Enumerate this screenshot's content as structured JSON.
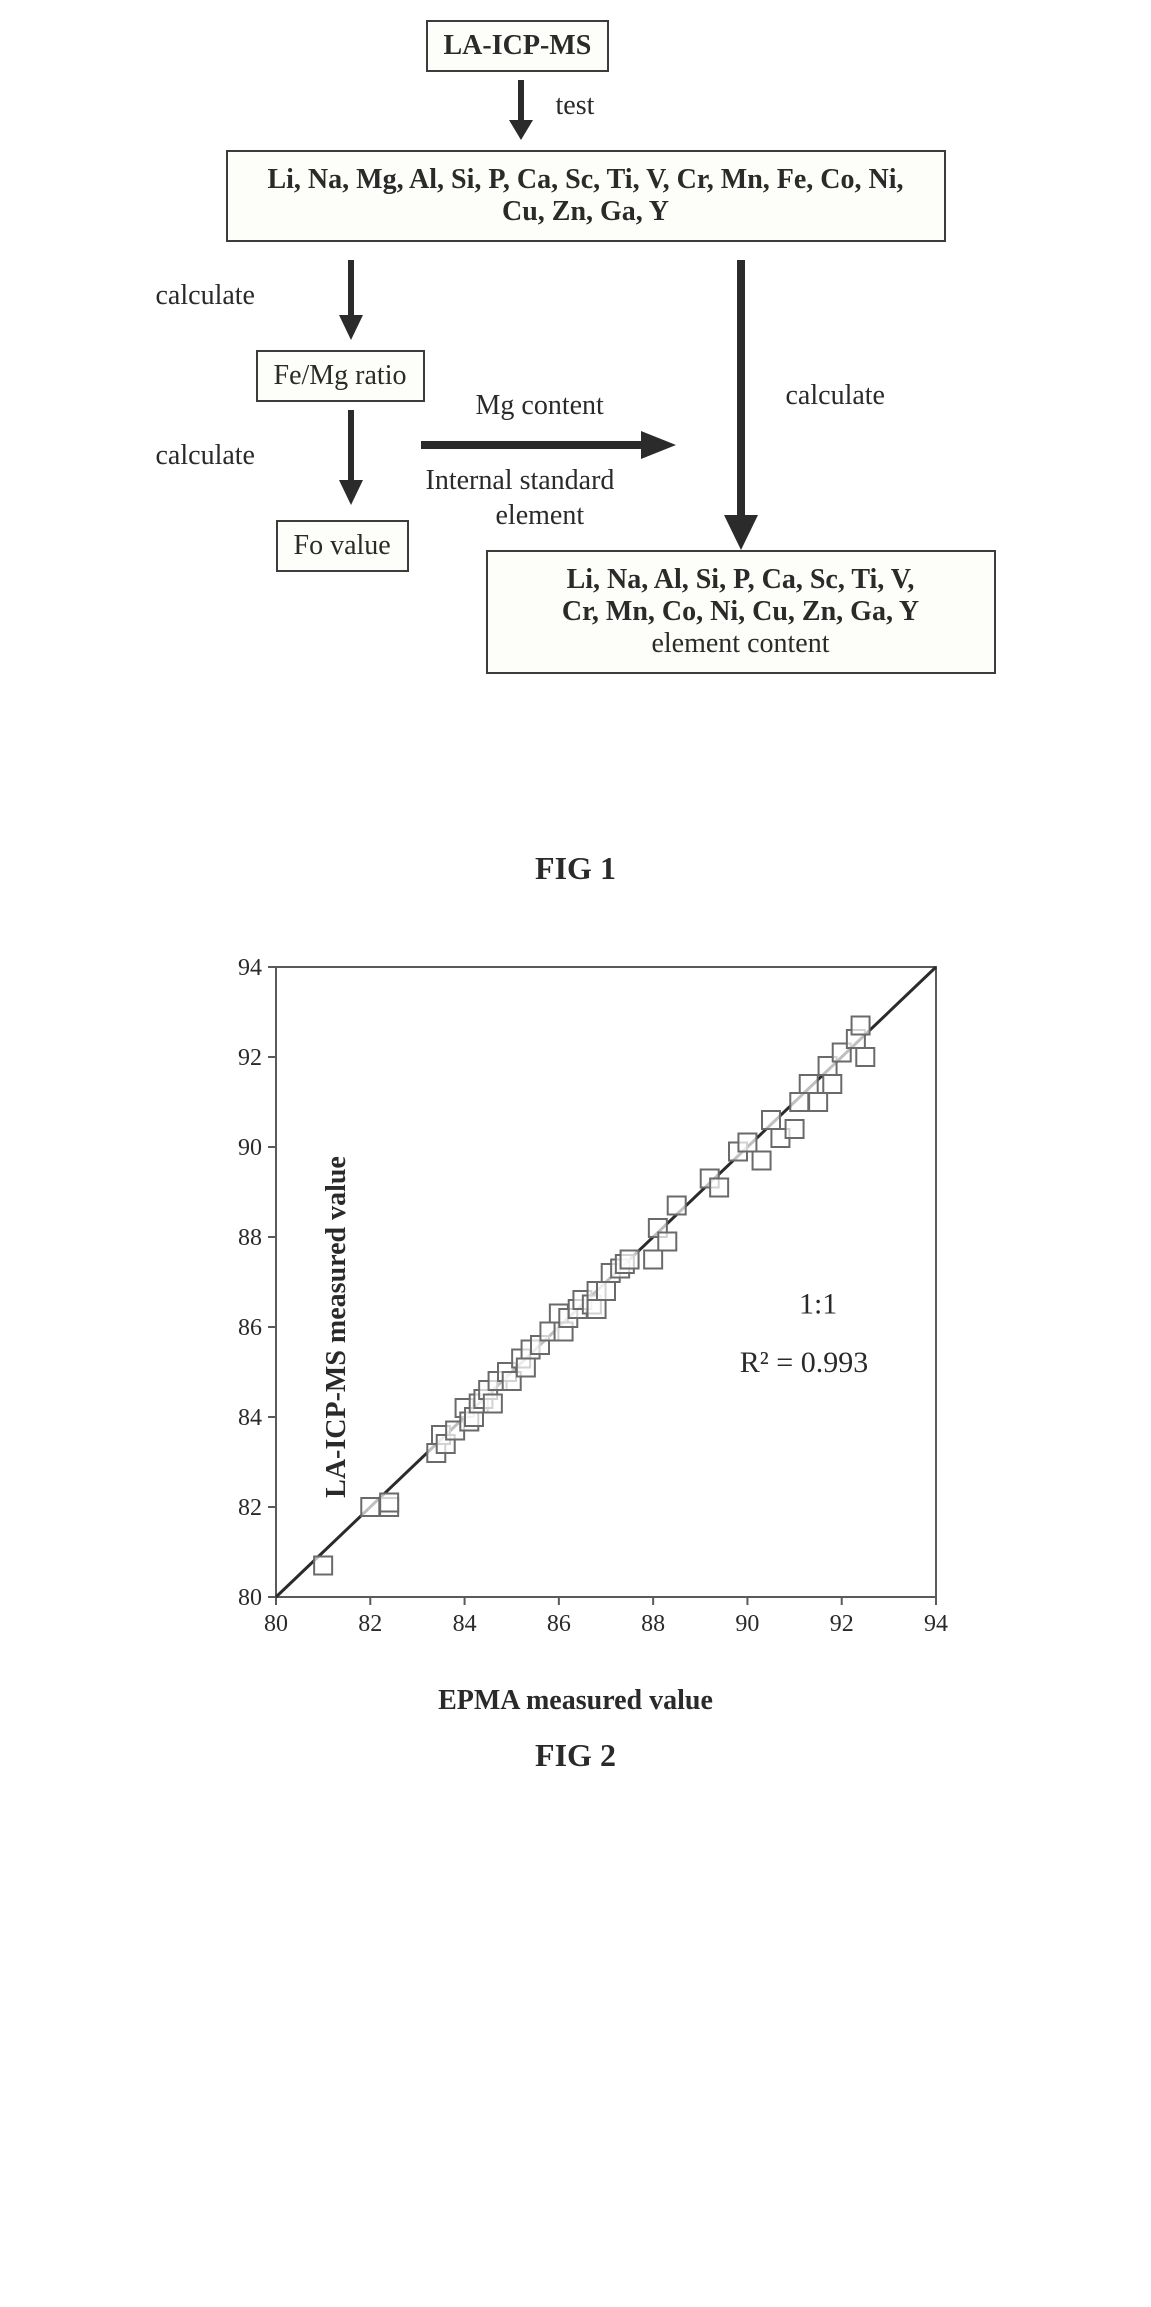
{
  "fig1": {
    "title_box": "LA-ICP-MS",
    "elements_box": "Li, Na, Mg, Al, Si, P, Ca, Sc, Ti, V, Cr, Mn, Fe, Co, Ni, Cu, Zn, Ga, Y",
    "ratio_box": "Fe/Mg ratio",
    "fo_box": "Fo value",
    "result_box_line1": "Li, Na, Al, Si, P, Ca, Sc, Ti, V,",
    "result_box_line2": "Cr, Mn, Co, Ni, Cu, Zn, Ga, Y",
    "result_box_line3": "element content",
    "label_test": "test",
    "label_calc": "calculate",
    "label_mg": "Mg content",
    "label_internal1": "Internal standard",
    "label_internal2": "element",
    "caption": "FIG 1",
    "arrow_color": "#2b2b2b",
    "box_border": "#3c3c3c"
  },
  "fig2": {
    "caption": "FIG 2",
    "xlabel": "EPMA measured value",
    "ylabel": "LA-ICP-MS measured value",
    "xlim": [
      80,
      94
    ],
    "ylim": [
      80,
      94
    ],
    "tick_step": 2,
    "ticks": [
      80,
      82,
      84,
      86,
      88,
      90,
      92,
      94
    ],
    "tick_fontsize": 24,
    "label_fontsize": 28,
    "annotation_text1": "1:1",
    "annotation_text2": "R² = 0.993",
    "annotation_fontsize": 30,
    "plot_border_color": "#5a5a5a",
    "tick_color": "#5a5a5a",
    "marker_stroke": "#6a6a6a",
    "marker_fill": "#ffffff",
    "marker_size": 18,
    "line_color": "#2b2b2b",
    "background": "#ffffff",
    "data": [
      [
        81.0,
        80.7
      ],
      [
        82.0,
        82.0
      ],
      [
        82.4,
        82.0
      ],
      [
        82.4,
        82.1
      ],
      [
        83.4,
        83.2
      ],
      [
        83.5,
        83.6
      ],
      [
        83.6,
        83.4
      ],
      [
        83.8,
        83.7
      ],
      [
        84.0,
        84.2
      ],
      [
        84.1,
        83.9
      ],
      [
        84.2,
        84.0
      ],
      [
        84.3,
        84.3
      ],
      [
        84.4,
        84.4
      ],
      [
        84.5,
        84.6
      ],
      [
        84.6,
        84.3
      ],
      [
        84.7,
        84.8
      ],
      [
        84.9,
        85.0
      ],
      [
        85.0,
        84.8
      ],
      [
        85.2,
        85.3
      ],
      [
        85.3,
        85.1
      ],
      [
        85.4,
        85.5
      ],
      [
        85.6,
        85.6
      ],
      [
        85.8,
        85.9
      ],
      [
        86.0,
        86.3
      ],
      [
        86.1,
        85.9
      ],
      [
        86.2,
        86.2
      ],
      [
        86.4,
        86.4
      ],
      [
        86.5,
        86.6
      ],
      [
        86.7,
        86.5
      ],
      [
        86.8,
        86.8
      ],
      [
        86.8,
        86.4
      ],
      [
        87.0,
        86.8
      ],
      [
        87.1,
        87.2
      ],
      [
        87.3,
        87.3
      ],
      [
        87.4,
        87.4
      ],
      [
        87.5,
        87.5
      ],
      [
        88.0,
        87.5
      ],
      [
        88.1,
        88.2
      ],
      [
        88.3,
        87.9
      ],
      [
        88.5,
        88.7
      ],
      [
        89.2,
        89.3
      ],
      [
        89.4,
        89.1
      ],
      [
        89.8,
        89.9
      ],
      [
        90.0,
        90.1
      ],
      [
        90.3,
        89.7
      ],
      [
        90.5,
        90.6
      ],
      [
        90.7,
        90.2
      ],
      [
        91.0,
        90.4
      ],
      [
        91.1,
        91.0
      ],
      [
        91.3,
        91.4
      ],
      [
        91.5,
        91.0
      ],
      [
        91.7,
        91.8
      ],
      [
        91.8,
        91.4
      ],
      [
        92.0,
        92.1
      ],
      [
        92.3,
        92.4
      ],
      [
        92.4,
        92.7
      ],
      [
        92.5,
        92.0
      ]
    ]
  }
}
